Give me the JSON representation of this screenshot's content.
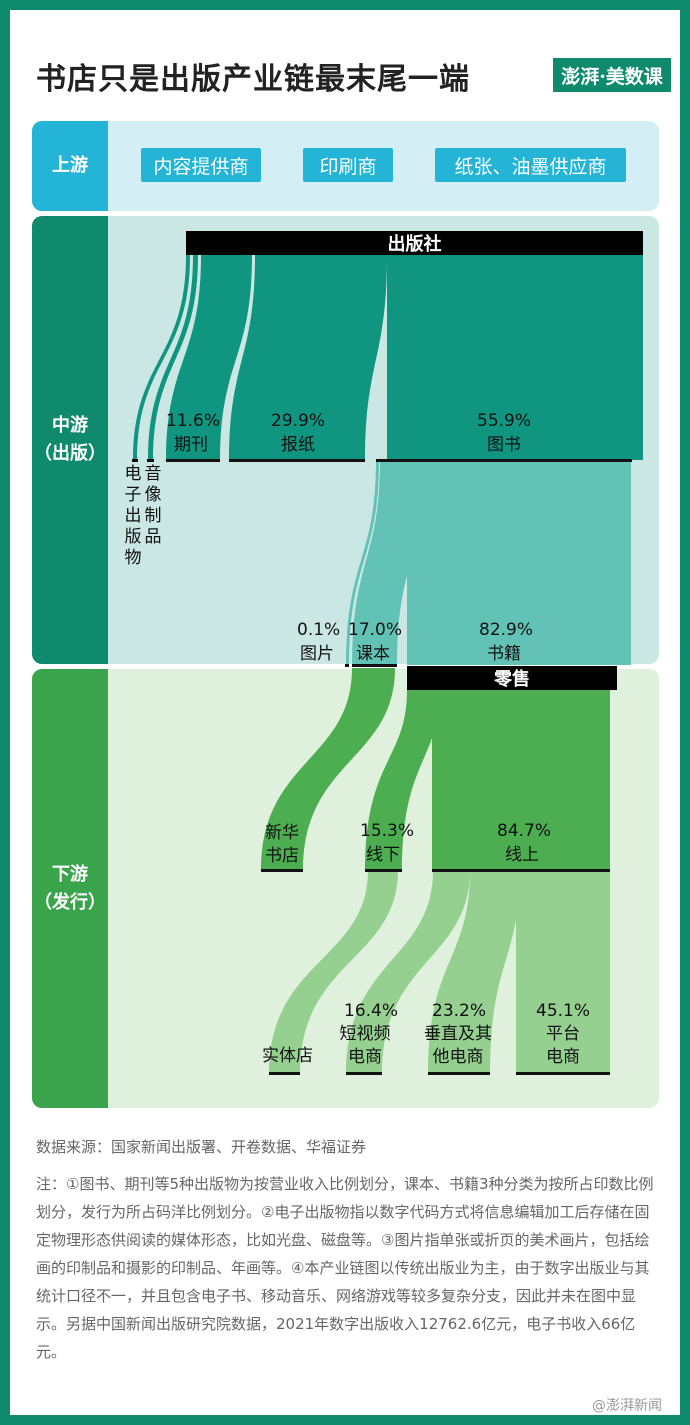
{
  "title": "书店只是出版产业链最末尾一端",
  "logo": "澎湃·美数课",
  "upstream": {
    "label": "上游",
    "items": [
      "内容提供商",
      "印刷商",
      "纸张、油墨供应商"
    ]
  },
  "midstream": {
    "label_line1": "中游",
    "label_line2": "（出版）",
    "publisher": "出版社",
    "categories": [
      {
        "name": "电子出版物",
        "share": null
      },
      {
        "name": "音像制品",
        "share": null
      },
      {
        "name": "期刊",
        "share": "11.6%"
      },
      {
        "name": "报纸",
        "share": "29.9%"
      },
      {
        "name": "图书",
        "share": "55.9%"
      }
    ],
    "book_split": [
      {
        "name": "图片",
        "share": "0.1%"
      },
      {
        "name": "课本",
        "share": "17.0%"
      },
      {
        "name": "书籍",
        "share": "82.9%"
      }
    ]
  },
  "downstream": {
    "label_line1": "下游",
    "label_line2": "（发行）",
    "retail": "零售",
    "xinhua": "新华书店",
    "channels": [
      {
        "name": "线下",
        "share": "15.3%"
      },
      {
        "name": "线上",
        "share": "84.7%"
      }
    ],
    "stores": [
      {
        "name": "实体店",
        "share": null
      },
      {
        "name": "短视频电商",
        "share": "16.4%"
      },
      {
        "name": "垂直及其他电商",
        "share": "23.2%"
      },
      {
        "name": "平台电商",
        "share": "45.1%"
      }
    ]
  },
  "source": "数据来源：国家新闻出版署、开卷数据、华福证券",
  "note": "注：①图书、期刊等5种出版物为按营业收入比例划分，课本、书籍3种分类为按所占印数比例划分，发行为所占码洋比例划分。②电子出版物指以数字代码方式将信息编辑加工后存储在固定物理形态供阅读的媒体形态，比如光盘、磁盘等。③图片指单张或折页的美术画片，包括绘画的印制品和摄影的印制品、年画等。④本产业链图以传统出版业为主，由于数字出版业与其统计口径不一，并且包含电子书、移动音乐、网络游戏等较多复杂分支，因此并未在图中显示。另据中国新闻出版研究院数据，2021年数字出版收入12762.6亿元，电子书收入66亿元。",
  "watermark": "@澎湃新闻",
  "colors": {
    "frame": "#0f8a6c",
    "up_band": "#d4eef6",
    "up_label": "#23b4d6",
    "mid_band": "#cbe7e3",
    "mid_label": "#0f8a6c",
    "mid_flow": "#0f9580",
    "mid_flow_light": "#63c2b6",
    "down_band": "#dff0dd",
    "down_label": "#3aa44c",
    "down_flow": "#4cae50",
    "down_flow_light": "#95d090"
  }
}
